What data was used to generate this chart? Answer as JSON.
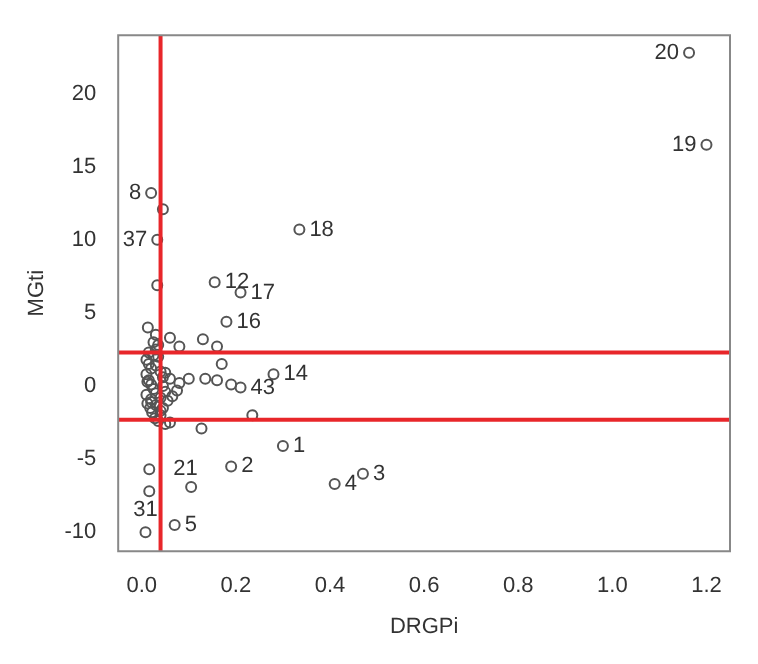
{
  "chart_data": {
    "type": "scatter",
    "xlabel": "DRGPi",
    "ylabel": "MGti",
    "xlim": [
      -0.05,
      1.25
    ],
    "ylim": [
      -11.3,
      24
    ],
    "xticks": [
      {
        "value": 0,
        "label": "0.0"
      },
      {
        "value": 0.2,
        "label": "0.2"
      },
      {
        "value": 0.4,
        "label": "0.4"
      },
      {
        "value": 0.6,
        "label": "0.6"
      },
      {
        "value": 0.8,
        "label": "0.8"
      },
      {
        "value": 1,
        "label": "1.0"
      },
      {
        "value": 1.2,
        "label": "1.2"
      }
    ],
    "yticks": [
      -10,
      -5,
      0,
      5,
      10,
      15,
      20
    ],
    "grid": false,
    "marker": "circle",
    "series": [
      {
        "color": "#555555",
        "x": [
          1.163,
          1.2,
          0.335,
          0.02,
          0.033,
          0.045,
          0.033,
          0.155,
          0.21,
          0.18,
          0.28,
          0.21,
          0.3,
          0.19,
          0.016,
          0.105,
          0.47,
          0.41,
          0.07,
          0.008,
          0.016,
          0.127,
          0.13,
          0.16,
          0.17,
          0.06,
          0.1,
          0.135,
          0.16,
          0.19,
          0.235,
          0.08,
          0.013,
          0.03,
          0.06,
          0.01,
          0.015,
          0.02,
          0.025,
          0.03,
          0.035,
          0.04,
          0.045,
          0.05,
          0.01,
          0.015,
          0.02,
          0.025,
          0.03,
          0.04,
          0.05,
          0.012,
          0.018,
          0.022,
          0.028,
          0.035,
          0.045,
          0.055,
          0.065,
          0.075,
          0.012,
          0.02,
          0.03,
          0.04,
          0.05,
          0.06,
          0.015,
          0.025,
          0.035,
          0.045,
          0.08,
          0.01,
          0.02,
          0.03,
          0.04
        ],
        "values": [
          22.8,
          16.5,
          10.7,
          13.2,
          10,
          12.1,
          6.9,
          7.1,
          6.4,
          4.4,
          0.8,
          -0.1,
          -4.1,
          -5.5,
          -5.7,
          -6.9,
          -6,
          -6.7,
          -9.5,
          -10,
          -7.2,
          -2.9,
          3.2,
          2.7,
          1.5,
          0.5,
          0.5,
          0.5,
          0.4,
          0.1,
          -2,
          2.7,
          4,
          3.5,
          3.3,
          1.8,
          1.5,
          1.2,
          2.1,
          2.5,
          2.8,
          1,
          0.6,
          0.9,
          0.8,
          0.4,
          0.1,
          -0.2,
          -0.5,
          -0.8,
          -0.4,
          -1.2,
          -1.5,
          -1.8,
          -2.2,
          -2.4,
          -1.5,
          -1,
          -0.7,
          -0.3,
          0.3,
          -0.9,
          -1.3,
          -1.7,
          -2.6,
          -2.5,
          2.3,
          3,
          2,
          0,
          0.2,
          -0.6,
          -1.1,
          1.4,
          -2
        ]
      }
    ],
    "ref_lines": [
      {
        "axis": "x",
        "value": 0.04,
        "color": "#e8262a"
      },
      {
        "axis": "y",
        "value": 2.3,
        "color": "#e8262a"
      },
      {
        "axis": "y",
        "value": -2.3,
        "color": "#e8262a"
      }
    ],
    "annotations": [
      {
        "text": "20",
        "x": 1.163,
        "y": 22.8
      },
      {
        "text": "19",
        "x": 1.2,
        "y": 16.5
      },
      {
        "text": "18",
        "x": 0.335,
        "y": 10.7
      },
      {
        "text": "8",
        "x": 0.02,
        "y": 13.2
      },
      {
        "text": "37",
        "x": 0.033,
        "y": 10
      },
      {
        "text": "12",
        "x": 0.155,
        "y": 7.1
      },
      {
        "text": "17",
        "x": 0.21,
        "y": 6.4
      },
      {
        "text": "16",
        "x": 0.18,
        "y": 4.4
      },
      {
        "text": "14",
        "x": 0.28,
        "y": 0.8
      },
      {
        "text": "43",
        "x": 0.21,
        "y": -0.1
      },
      {
        "text": "1",
        "x": 0.3,
        "y": -4.1
      },
      {
        "text": "2",
        "x": 0.19,
        "y": -5.5
      },
      {
        "text": "21",
        "x": 0.016,
        "y": -5.7
      },
      {
        "text": "3",
        "x": 0.47,
        "y": -6
      },
      {
        "text": "4",
        "x": 0.41,
        "y": -6.7
      },
      {
        "text": "5",
        "x": 0.07,
        "y": -9.5
      },
      {
        "text": "31",
        "x": 0.008,
        "y": -10
      }
    ]
  }
}
